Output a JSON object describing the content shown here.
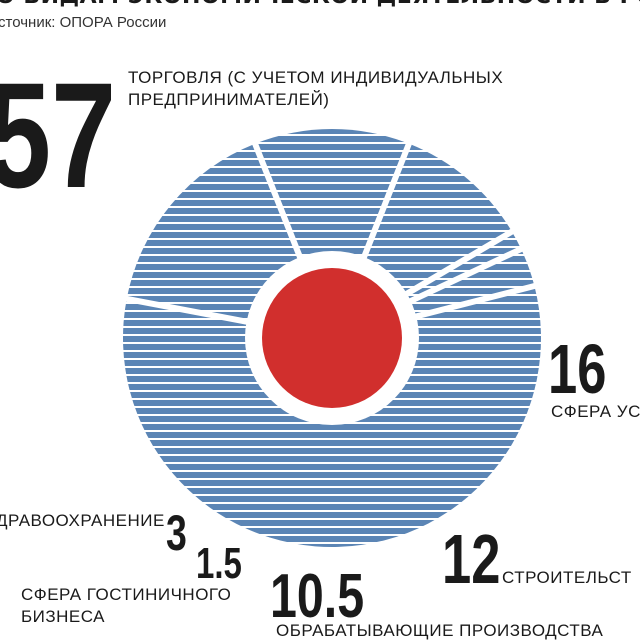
{
  "header": {
    "title": "О ВИДАМ ЭКОНОМИЧЕСКОЙ ДЕЯТЕЛЬНОСТИ В РОССИИ, %",
    "source": "сточник: ОПОРА России"
  },
  "colors": {
    "pie": "#5b85b5",
    "stripe": "#ffffff",
    "center": "#d12f2d",
    "text": "#1a1a1a"
  },
  "chart_data": {
    "type": "pie",
    "title": "",
    "categories": [
      "ТОРГОВЛЯ (С УЧЕТОМ ИНДИВИДУАЛЬНЫХ ПРЕДПРИНИМАТЕЛЕЙ)",
      "СФЕРА УС",
      "СТРОИТЕЛЬСТ",
      "ОБРАБАТЫВАЮЩИЕ ПРОИЗВОДСТВА",
      "СФЕРА ГОСТИНИЧНОГО БИЗНЕСА",
      "ДРАВООХРАНЕНИЕ"
    ],
    "values": [
      57,
      16,
      12,
      10.5,
      1.5,
      3
    ],
    "value_labels": [
      "57",
      "16",
      "12",
      "10.5",
      "1.5",
      "3"
    ],
    "label_lines": [
      [
        "ТОРГОВЛЯ (С УЧЕТОМ ИНДИВИДУАЛЬНЫХ",
        "ПРЕДПРИНИМАТЕЛЕЙ)"
      ],
      [
        "СФЕРА УС"
      ],
      [
        "СТРОИТЕЛЬСТ"
      ],
      [
        "ОБРАБАТЫВАЮЩИЕ ПРОИЗВОДСТВА"
      ],
      [
        "СФЕРА ГОСТИНИЧНОГО",
        "БИЗНЕСА"
      ],
      [
        "ДРАВООХРАНЕНИЕ"
      ]
    ],
    "legend": "none",
    "grid": false
  }
}
